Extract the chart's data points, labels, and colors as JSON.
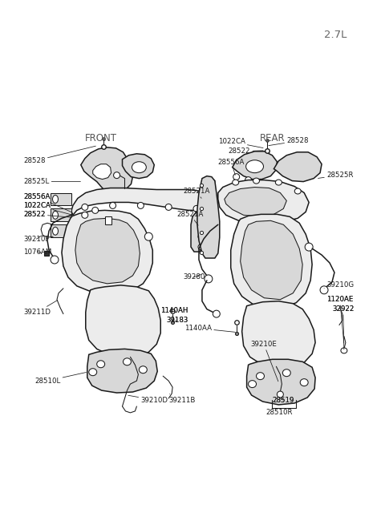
{
  "bg_color": "#ffffff",
  "line_color": "#1a1a1a",
  "label_color": "#1a1a1a",
  "gray_fill": "#d8d8d8",
  "light_fill": "#ececec",
  "title": "2.7L",
  "front_label": "FRONT",
  "rear_label": "REAR",
  "font_size_small": 6.2,
  "font_size_header": 8.5,
  "font_size_title": 9.5
}
